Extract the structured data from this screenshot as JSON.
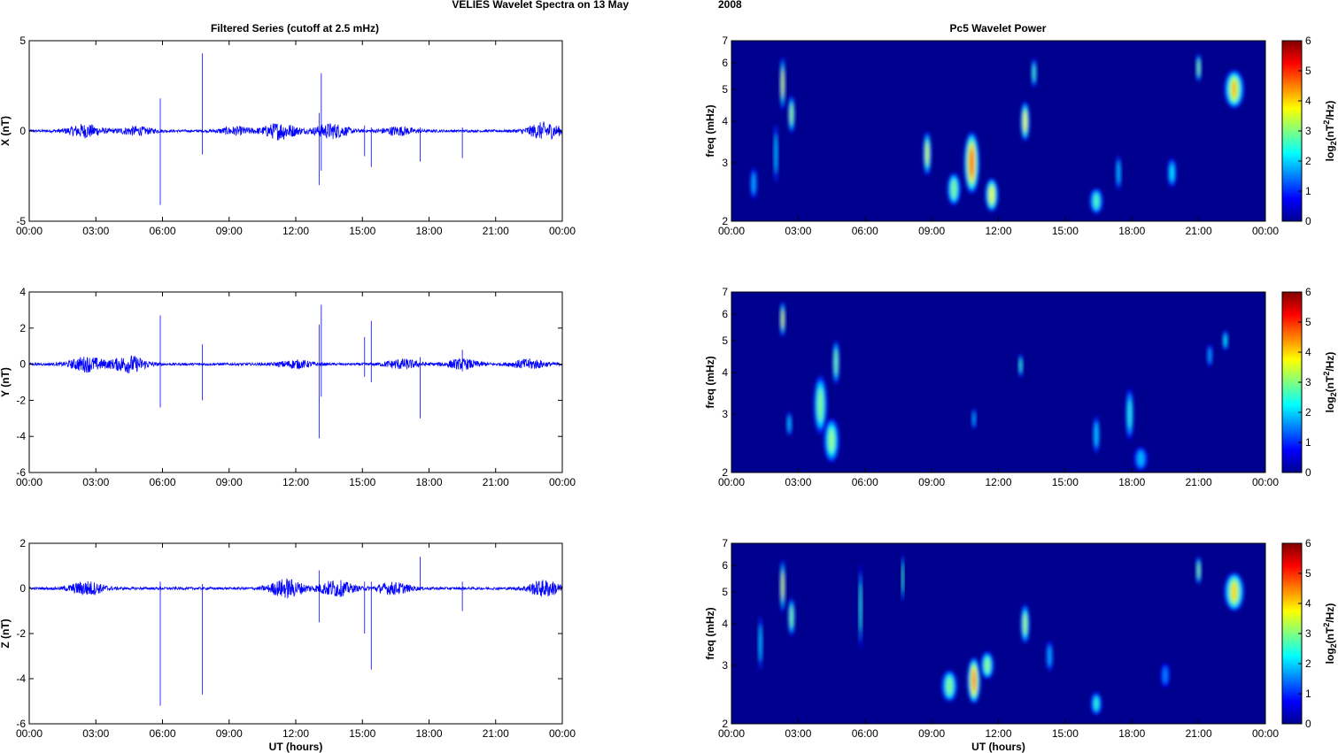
{
  "figure": {
    "title_left": "VELIES Wavelet Spectra on 13 May",
    "title_right": "2008",
    "left_column_title": "Filtered Series (cutoff at 2.5 mHz)",
    "right_column_title": "Pc5 Wavelet Power",
    "xlabel": "UT (hours)",
    "spectrum_ylabel": "freq (mHz)",
    "colorbar_label_prefix": "log",
    "colorbar_label_sub": "2",
    "colorbar_label_mid": "(nT",
    "colorbar_label_sup": "2",
    "colorbar_label_suffix": "/Hz)"
  },
  "colors": {
    "series_line": "#0000ff",
    "spectrum_background": "#00008f",
    "frame": "#000000"
  },
  "chart_data": [
    {
      "type": "line",
      "title": "Filtered Series (cutoff at 2.5 mHz)",
      "ylabel": "X (nT)",
      "xlabel": "",
      "xlim": [
        0,
        24
      ],
      "ylim": [
        -5,
        5
      ],
      "xticks": [
        "00:00",
        "03:00",
        "06:00",
        "09:00",
        "12:00",
        "15:00",
        "18:00",
        "21:00",
        "00:00"
      ],
      "yticks": [
        -5,
        0,
        5
      ],
      "noise_bursts": [
        {
          "t": 2.5,
          "amp": 0.35
        },
        {
          "t": 4.8,
          "amp": 0.22
        },
        {
          "t": 9.3,
          "amp": 0.2
        },
        {
          "t": 11.3,
          "amp": 0.45
        },
        {
          "t": 13.6,
          "amp": 0.4
        },
        {
          "t": 16.6,
          "amp": 0.22
        },
        {
          "t": 23.2,
          "amp": 0.45
        }
      ],
      "spikes": [
        {
          "t": 5.9,
          "min": -4.1,
          "max": 1.8
        },
        {
          "t": 7.8,
          "min": -1.3,
          "max": 4.3
        },
        {
          "t": 13.05,
          "min": -3.0,
          "max": 1.0
        },
        {
          "t": 13.15,
          "min": -2.2,
          "max": 3.2
        },
        {
          "t": 15.1,
          "min": -1.4,
          "max": 0.3
        },
        {
          "t": 15.4,
          "min": -2.0,
          "max": 0.2
        },
        {
          "t": 17.6,
          "min": -1.7,
          "max": 0.2
        },
        {
          "t": 19.5,
          "min": -1.5,
          "max": 0.2
        }
      ]
    },
    {
      "type": "line",
      "title": "",
      "ylabel": "Y (nT)",
      "xlabel": "",
      "xlim": [
        0,
        24
      ],
      "ylim": [
        -6,
        4
      ],
      "xticks": [
        "00:00",
        "03:00",
        "06:00",
        "09:00",
        "12:00",
        "15:00",
        "18:00",
        "21:00",
        "00:00"
      ],
      "yticks": [
        -6,
        -4,
        -2,
        0,
        2,
        4
      ],
      "noise_bursts": [
        {
          "t": 2.6,
          "amp": 0.4
        },
        {
          "t": 4.5,
          "amp": 0.45
        },
        {
          "t": 12.0,
          "amp": 0.2
        },
        {
          "t": 16.8,
          "amp": 0.25
        },
        {
          "t": 19.5,
          "amp": 0.25
        },
        {
          "t": 22.5,
          "amp": 0.25
        }
      ],
      "spikes": [
        {
          "t": 5.9,
          "min": -2.4,
          "max": 2.7
        },
        {
          "t": 7.8,
          "min": -2.0,
          "max": 1.1
        },
        {
          "t": 13.05,
          "min": -4.1,
          "max": 2.2
        },
        {
          "t": 13.15,
          "min": -1.8,
          "max": 3.3
        },
        {
          "t": 15.1,
          "min": -0.7,
          "max": 1.5
        },
        {
          "t": 15.4,
          "min": -1.0,
          "max": 2.4
        },
        {
          "t": 17.6,
          "min": -3.0,
          "max": 0.4
        },
        {
          "t": 19.5,
          "min": -0.4,
          "max": 0.8
        }
      ]
    },
    {
      "type": "line",
      "title": "",
      "ylabel": "Z (nT)",
      "xlabel": "UT (hours)",
      "xlim": [
        0,
        24
      ],
      "ylim": [
        -6,
        2
      ],
      "xticks": [
        "00:00",
        "03:00",
        "06:00",
        "09:00",
        "12:00",
        "15:00",
        "18:00",
        "21:00",
        "00:00"
      ],
      "yticks": [
        -6,
        -4,
        -2,
        0,
        2
      ],
      "noise_bursts": [
        {
          "t": 2.6,
          "amp": 0.3
        },
        {
          "t": 11.6,
          "amp": 0.4
        },
        {
          "t": 13.8,
          "amp": 0.35
        },
        {
          "t": 16.4,
          "amp": 0.25
        },
        {
          "t": 23.2,
          "amp": 0.35
        }
      ],
      "spikes": [
        {
          "t": 5.9,
          "min": -5.2,
          "max": 0.3
        },
        {
          "t": 7.8,
          "min": -4.7,
          "max": 0.2
        },
        {
          "t": 13.05,
          "min": -1.5,
          "max": 0.8
        },
        {
          "t": 15.1,
          "min": -2.0,
          "max": 0.3
        },
        {
          "t": 15.4,
          "min": -3.6,
          "max": 0.3
        },
        {
          "t": 17.6,
          "min": -0.1,
          "max": 1.4
        },
        {
          "t": 19.5,
          "min": -1.0,
          "max": 0.3
        }
      ]
    },
    {
      "type": "heatmap",
      "title": "Pc5 Wavelet Power",
      "ylabel": "freq (mHz)",
      "xlabel": "",
      "xlim": [
        0,
        24
      ],
      "ylim": [
        2,
        7
      ],
      "yscale": "log",
      "xticks": [
        "00:00",
        "03:00",
        "06:00",
        "09:00",
        "12:00",
        "15:00",
        "18:00",
        "21:00",
        "00:00"
      ],
      "yticks": [
        2,
        3,
        4,
        5,
        6,
        7
      ],
      "colorbar": {
        "min": 0,
        "max": 6,
        "ticks": [
          0,
          1,
          2,
          3,
          4,
          5,
          6
        ],
        "colormap": "jet"
      },
      "features": [
        {
          "t": 2.3,
          "f": 5.2,
          "power": 3.5,
          "dt": 0.12,
          "df": 1.8
        },
        {
          "t": 2.7,
          "f": 4.2,
          "power": 3.2,
          "dt": 0.15,
          "df": 1.0
        },
        {
          "t": 2.0,
          "f": 3.2,
          "power": 2.0,
          "dt": 0.1,
          "df": 1.2
        },
        {
          "t": 1.0,
          "f": 2.6,
          "power": 1.8,
          "dt": 0.15,
          "df": 0.5
        },
        {
          "t": 8.8,
          "f": 3.2,
          "power": 3.5,
          "dt": 0.18,
          "df": 0.9
        },
        {
          "t": 10.0,
          "f": 2.5,
          "power": 3.0,
          "dt": 0.3,
          "df": 0.5
        },
        {
          "t": 10.8,
          "f": 3.0,
          "power": 5.0,
          "dt": 0.35,
          "df": 1.2
        },
        {
          "t": 11.7,
          "f": 2.4,
          "power": 3.8,
          "dt": 0.3,
          "df": 0.5
        },
        {
          "t": 13.2,
          "f": 4.0,
          "power": 3.8,
          "dt": 0.2,
          "df": 1.0
        },
        {
          "t": 13.6,
          "f": 5.6,
          "power": 2.6,
          "dt": 0.12,
          "df": 1.0
        },
        {
          "t": 16.4,
          "f": 2.3,
          "power": 2.7,
          "dt": 0.3,
          "df": 0.35
        },
        {
          "t": 17.4,
          "f": 2.8,
          "power": 2.0,
          "dt": 0.12,
          "df": 0.6
        },
        {
          "t": 19.8,
          "f": 2.8,
          "power": 2.2,
          "dt": 0.2,
          "df": 0.5
        },
        {
          "t": 21.0,
          "f": 5.8,
          "power": 3.0,
          "dt": 0.12,
          "df": 1.0
        },
        {
          "t": 22.6,
          "f": 5.0,
          "power": 4.2,
          "dt": 0.45,
          "df": 1.2
        }
      ]
    },
    {
      "type": "heatmap",
      "title": "",
      "ylabel": "freq (mHz)",
      "xlabel": "",
      "xlim": [
        0,
        24
      ],
      "ylim": [
        2,
        7
      ],
      "yscale": "log",
      "xticks": [
        "00:00",
        "03:00",
        "06:00",
        "09:00",
        "12:00",
        "15:00",
        "18:00",
        "21:00",
        "00:00"
      ],
      "yticks": [
        2,
        3,
        4,
        5,
        6,
        7
      ],
      "colorbar": {
        "min": 0,
        "max": 6,
        "ticks": [
          0,
          1,
          2,
          3,
          4,
          5,
          6
        ],
        "colormap": "jet"
      },
      "features": [
        {
          "t": 2.3,
          "f": 5.8,
          "power": 3.5,
          "dt": 0.12,
          "df": 1.3
        },
        {
          "t": 2.6,
          "f": 2.8,
          "power": 2.0,
          "dt": 0.12,
          "df": 0.4
        },
        {
          "t": 4.0,
          "f": 3.2,
          "power": 3.0,
          "dt": 0.3,
          "df": 1.2
        },
        {
          "t": 4.5,
          "f": 2.5,
          "power": 3.2,
          "dt": 0.35,
          "df": 0.7
        },
        {
          "t": 4.7,
          "f": 4.3,
          "power": 3.0,
          "dt": 0.15,
          "df": 1.2
        },
        {
          "t": 10.9,
          "f": 2.9,
          "power": 1.8,
          "dt": 0.1,
          "df": 0.35
        },
        {
          "t": 13.0,
          "f": 4.2,
          "power": 2.5,
          "dt": 0.1,
          "df": 0.6
        },
        {
          "t": 16.4,
          "f": 2.6,
          "power": 2.0,
          "dt": 0.15,
          "df": 0.6
        },
        {
          "t": 17.9,
          "f": 3.0,
          "power": 2.5,
          "dt": 0.18,
          "df": 1.0
        },
        {
          "t": 18.4,
          "f": 2.2,
          "power": 1.8,
          "dt": 0.3,
          "df": 0.3
        },
        {
          "t": 21.5,
          "f": 4.5,
          "power": 1.8,
          "dt": 0.12,
          "df": 0.6
        },
        {
          "t": 22.2,
          "f": 5.0,
          "power": 2.3,
          "dt": 0.12,
          "df": 0.6
        }
      ]
    },
    {
      "type": "heatmap",
      "title": "",
      "ylabel": "freq (mHz)",
      "xlabel": "UT (hours)",
      "xlim": [
        0,
        24
      ],
      "ylim": [
        2,
        7
      ],
      "yscale": "log",
      "xticks": [
        "00:00",
        "03:00",
        "06:00",
        "09:00",
        "12:00",
        "15:00",
        "18:00",
        "21:00",
        "00:00"
      ],
      "yticks": [
        2,
        3,
        4,
        5,
        6,
        7
      ],
      "colorbar": {
        "min": 0,
        "max": 6,
        "ticks": [
          0,
          1,
          2,
          3,
          4,
          5,
          6
        ],
        "colormap": "jet"
      },
      "features": [
        {
          "t": 2.3,
          "f": 5.2,
          "power": 3.5,
          "dt": 0.12,
          "df": 1.8
        },
        {
          "t": 2.7,
          "f": 4.2,
          "power": 3.0,
          "dt": 0.15,
          "df": 1.0
        },
        {
          "t": 1.3,
          "f": 3.5,
          "power": 2.0,
          "dt": 0.1,
          "df": 1.2
        },
        {
          "t": 5.8,
          "f": 4.5,
          "power": 2.5,
          "dt": 0.08,
          "df": 2.5
        },
        {
          "t": 7.7,
          "f": 5.5,
          "power": 2.5,
          "dt": 0.06,
          "df": 1.8
        },
        {
          "t": 9.8,
          "f": 2.6,
          "power": 3.0,
          "dt": 0.35,
          "df": 0.5
        },
        {
          "t": 10.9,
          "f": 2.7,
          "power": 4.8,
          "dt": 0.3,
          "df": 0.8
        },
        {
          "t": 11.5,
          "f": 3.0,
          "power": 3.2,
          "dt": 0.3,
          "df": 0.5
        },
        {
          "t": 13.2,
          "f": 4.0,
          "power": 3.3,
          "dt": 0.2,
          "df": 1.0
        },
        {
          "t": 14.3,
          "f": 3.2,
          "power": 1.8,
          "dt": 0.15,
          "df": 0.6
        },
        {
          "t": 16.4,
          "f": 2.3,
          "power": 2.5,
          "dt": 0.25,
          "df": 0.3
        },
        {
          "t": 19.5,
          "f": 2.8,
          "power": 1.5,
          "dt": 0.2,
          "df": 0.4
        },
        {
          "t": 21.0,
          "f": 5.8,
          "power": 3.0,
          "dt": 0.12,
          "df": 1.0
        },
        {
          "t": 22.6,
          "f": 5.0,
          "power": 4.0,
          "dt": 0.45,
          "df": 1.2
        }
      ]
    }
  ]
}
